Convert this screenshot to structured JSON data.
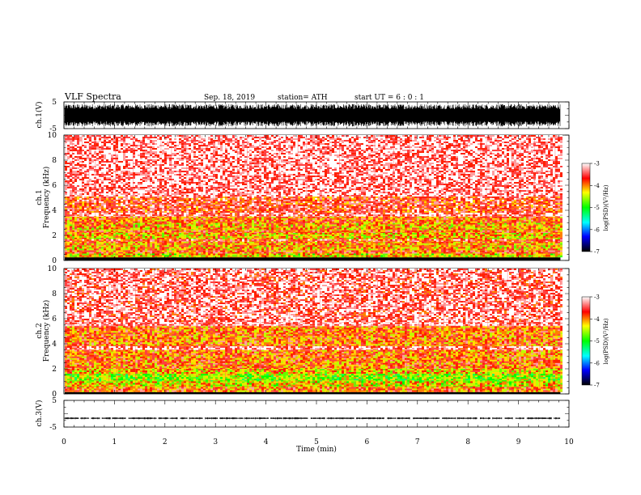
{
  "header": {
    "title": "VLF  Spectra",
    "date": "Sep. 18, 2019",
    "station": "station= ATH",
    "start": "start  UT  =    6  : 0   : 1"
  },
  "chart_data": {
    "type": "heatmap",
    "xlabel": "Time  (min)",
    "xlim": [
      0,
      10
    ],
    "x_ticks": [
      "0",
      "1",
      "2",
      "3",
      "4",
      "5",
      "6",
      "7",
      "8",
      "9",
      "10"
    ],
    "data_end_min": 9.83,
    "waveform_panels": [
      {
        "id": "ch1",
        "ylabel": "ch.1(V)",
        "ylim": [
          -5,
          5
        ],
        "y_ticks": [
          "5",
          "-5"
        ],
        "style": "dense-noise",
        "mean": 0,
        "amplitude": 4.2
      },
      {
        "id": "ch3",
        "ylabel": "ch.3(V)",
        "ylim": [
          -5,
          5
        ],
        "y_ticks": [
          "5",
          "-5"
        ],
        "style": "flat-with-gaps",
        "mean": -1.7,
        "amplitude": 0.35
      }
    ],
    "spectrogram_panels": [
      {
        "id": "ch1",
        "ylabel_channel": "ch.1",
        "ylabel": "Frequency  (kHz)",
        "ylim": [
          0,
          10
        ],
        "y_ticks": [
          "0",
          "2",
          "4",
          "6",
          "8",
          "10"
        ],
        "bands": [
          {
            "f0": 0.0,
            "f1": 0.25,
            "log_psd": -7
          },
          {
            "f0": 0.25,
            "f1": 0.55,
            "log_psd": -4.3
          },
          {
            "f0": 0.55,
            "f1": 0.8,
            "log_psd": -3.8
          },
          {
            "f0": 0.8,
            "f1": 1.2,
            "log_psd": -4.1
          },
          {
            "f0": 1.2,
            "f1": 1.5,
            "log_psd": -4.0
          },
          {
            "f0": 1.5,
            "f1": 1.7,
            "log_psd": -3.6
          },
          {
            "f0": 1.7,
            "f1": 2.2,
            "log_psd": -4.2
          },
          {
            "f0": 2.2,
            "f1": 2.4,
            "log_psd": -3.8
          },
          {
            "f0": 2.4,
            "f1": 3.0,
            "log_psd": -4.1
          },
          {
            "f0": 3.0,
            "f1": 3.5,
            "log_psd": -3.9
          },
          {
            "f0": 3.5,
            "f1": 3.8,
            "log_psd": -3.3
          },
          {
            "f0": 3.8,
            "f1": 5.1,
            "log_psd": -3.6
          },
          {
            "f0": 5.1,
            "f1": 10.0,
            "log_psd": -3.2
          }
        ]
      },
      {
        "id": "ch2",
        "ylabel_channel": "ch.2",
        "ylabel": "Frequency  (kHz)",
        "ylim": [
          0,
          10
        ],
        "y_ticks": [
          "0",
          "2",
          "4",
          "6",
          "8",
          "10"
        ],
        "bands": [
          {
            "f0": 0.0,
            "f1": 0.15,
            "log_psd": -7
          },
          {
            "f0": 0.15,
            "f1": 0.55,
            "log_psd": -3.9
          },
          {
            "f0": 0.55,
            "f1": 1.0,
            "log_psd": -4.3
          },
          {
            "f0": 1.0,
            "f1": 1.6,
            "log_psd": -4.6
          },
          {
            "f0": 1.6,
            "f1": 2.0,
            "log_psd": -4.2
          },
          {
            "f0": 2.0,
            "f1": 3.5,
            "log_psd": -3.9
          },
          {
            "f0": 3.5,
            "f1": 3.8,
            "log_psd": -3.3
          },
          {
            "f0": 3.8,
            "f1": 5.4,
            "log_psd": -3.9
          },
          {
            "f0": 5.4,
            "f1": 5.7,
            "log_psd": -3.2
          },
          {
            "f0": 5.7,
            "f1": 10.0,
            "log_psd": -3.3
          }
        ]
      }
    ],
    "colorbar": {
      "label": "log(PSD)(V²/Hz)",
      "range": [
        -7,
        -3
      ],
      "ticks": [
        "-3",
        "-4",
        "-5",
        "-6",
        "-7"
      ],
      "colors": [
        "#000000",
        "#0000ff",
        "#00ffff",
        "#00ff00",
        "#ffff00",
        "#ff0000",
        "#ffffff"
      ]
    }
  }
}
